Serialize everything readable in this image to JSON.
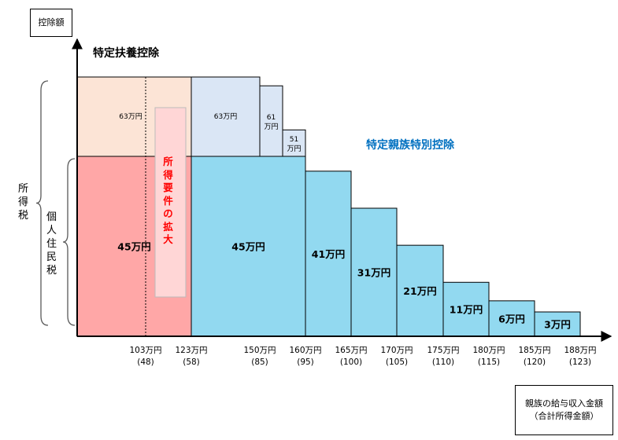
{
  "y_axis_label": "控除額",
  "x_axis_label_line1": "親族の給与収入金額",
  "x_axis_label_line2": "（合計所得金額）",
  "labels": {
    "upper_title": "特定扶養控除",
    "lower_title": "特定親族特別控除",
    "income_tax": "所得税",
    "resident_tax": "個人住民税",
    "expansion_note": "所得要件の拡大"
  },
  "colors": {
    "upper_left": "#fce4d6",
    "upper_right": "#dae6f5",
    "lower_left": "#ffa7a7",
    "lower_right": "#92d9f0",
    "expansion_box": "#ffd6d6",
    "expansion_text": "#ff0000",
    "lower_title_text": "#0070c0"
  },
  "chart_data": {
    "type": "bar",
    "x_ticks": [
      {
        "income": "103万円",
        "total": "(48)"
      },
      {
        "income": "123万円",
        "total": "(58)"
      },
      {
        "income": "150万円",
        "total": "(85)"
      },
      {
        "income": "160万円",
        "total": "(95)"
      },
      {
        "income": "165万円",
        "total": "(100)"
      },
      {
        "income": "170万円",
        "total": "(105)"
      },
      {
        "income": "175万円",
        "total": "(110)"
      },
      {
        "income": "180万円",
        "total": "(115)"
      },
      {
        "income": "185万円",
        "total": "(120)"
      },
      {
        "income": "188万円",
        "total": "(123)"
      }
    ],
    "income_tax_steps": [
      {
        "from": null,
        "to": "123万円",
        "label": "63万円"
      },
      {
        "from": "123万円",
        "to": "150万円",
        "label": "63万円"
      },
      {
        "from": "150万円",
        "to": "155万円",
        "label_line1": "61",
        "label_line2": "万円"
      },
      {
        "from": "155万円",
        "to": "160万円",
        "label_line1": "51",
        "label_line2": "万円"
      }
    ],
    "resident_tax_steps": [
      {
        "from": null,
        "to": "123万円",
        "label": "45万円"
      },
      {
        "from": "123万円",
        "to": "160万円",
        "label": "45万円"
      },
      {
        "from": "160万円",
        "to": "165万円",
        "label": "41万円"
      },
      {
        "from": "165万円",
        "to": "170万円",
        "label": "31万円"
      },
      {
        "from": "170万円",
        "to": "175万円",
        "label": "21万円"
      },
      {
        "from": "175万円",
        "to": "180万円",
        "label": "11万円"
      },
      {
        "from": "180万円",
        "to": "185万円",
        "label": "6万円"
      },
      {
        "from": "185万円",
        "to": "188万円",
        "label": "3万円"
      }
    ]
  }
}
